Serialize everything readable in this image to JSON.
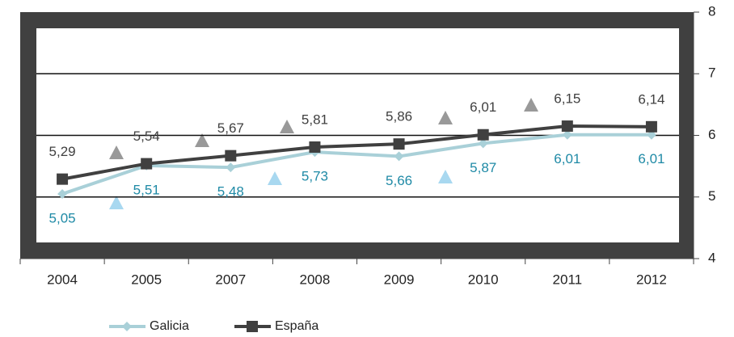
{
  "chart_data": {
    "type": "line",
    "categories": [
      "2004",
      "2005",
      "2007",
      "2008",
      "2009",
      "2010",
      "2011",
      "2012"
    ],
    "series": [
      {
        "name": "Galicia",
        "color": "#a9d0d8",
        "label_color": "#1f8aa6",
        "values": [
          5.05,
          5.51,
          5.48,
          5.73,
          5.66,
          5.87,
          6.01,
          6.01
        ],
        "value_labels": [
          "5,05",
          "5,51",
          "5,48",
          "5,73",
          "5,66",
          "5,87",
          "6,01",
          "6,01"
        ]
      },
      {
        "name": "España",
        "color": "#404040",
        "label_color": "#404040",
        "values": [
          5.29,
          5.54,
          5.67,
          5.81,
          5.86,
          6.01,
          6.15,
          6.14
        ],
        "value_labels": [
          "5,29",
          "5,54",
          "5,67",
          "5,81",
          "5,86",
          "6,01",
          "6,15",
          "6,14"
        ]
      }
    ],
    "ylim": [
      4,
      8
    ],
    "yticks": [
      4,
      5,
      6,
      7,
      8
    ],
    "grid": true
  }
}
